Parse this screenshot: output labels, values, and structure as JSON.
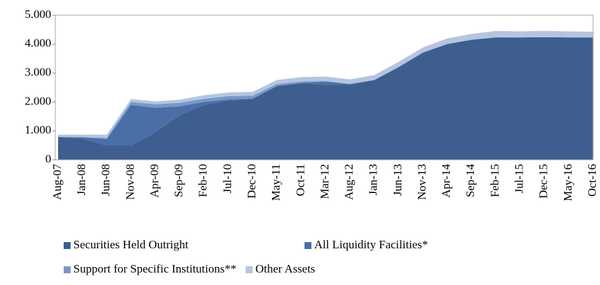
{
  "chart_data": {
    "type": "area",
    "categories": [
      "Aug-07",
      "Jan-08",
      "Jun-08",
      "Nov-08",
      "Apr-09",
      "Sep-09",
      "Feb-10",
      "Jul-10",
      "Dec-10",
      "May-11",
      "Oct-11",
      "Mar-12",
      "Aug-12",
      "Jan-13",
      "Jun-13",
      "Nov-13",
      "Apr-14",
      "Sep-14",
      "Feb-15",
      "Jul-15",
      "Dec-15",
      "May-16",
      "Oct-16"
    ],
    "series": [
      {
        "name": "Securities Held Outright",
        "color": "#3d5e8e",
        "values": [
          790,
          740,
          490,
          490,
          950,
          1550,
          1900,
          2050,
          2100,
          2550,
          2650,
          2600,
          2600,
          2750,
          3200,
          3700,
          4000,
          4150,
          4230,
          4230,
          4240,
          4230,
          4230
        ]
      },
      {
        "name": "All Liquidity Facilities*",
        "color": "#4a6fa6",
        "values": [
          0,
          40,
          230,
          1410,
          850,
          300,
          100,
          40,
          20,
          10,
          10,
          100,
          20,
          10,
          10,
          10,
          5,
          5,
          5,
          0,
          0,
          0,
          0
        ]
      },
      {
        "name": "Support for Specific Institutions**",
        "color": "#7698c9",
        "values": [
          0,
          0,
          40,
          100,
          120,
          120,
          110,
          110,
          100,
          60,
          50,
          30,
          10,
          10,
          5,
          5,
          0,
          0,
          0,
          0,
          0,
          0,
          0
        ]
      },
      {
        "name": "Other Assets",
        "color": "#b5c5df",
        "values": [
          80,
          90,
          110,
          100,
          100,
          110,
          120,
          130,
          130,
          140,
          150,
          150,
          150,
          160,
          170,
          170,
          190,
          200,
          220,
          210,
          220,
          210,
          200
        ]
      }
    ],
    "ylim": [
      0,
      5000
    ],
    "yticks": [
      0,
      {
        "value": 1000,
        "label": "1.000"
      },
      {
        "value": 2000,
        "label": "2.000"
      },
      {
        "value": 3000,
        "label": "3.000"
      },
      {
        "value": 4000,
        "label": "4.000"
      },
      {
        "value": 5000,
        "label": "5.000"
      }
    ],
    "legend": "bottom"
  }
}
